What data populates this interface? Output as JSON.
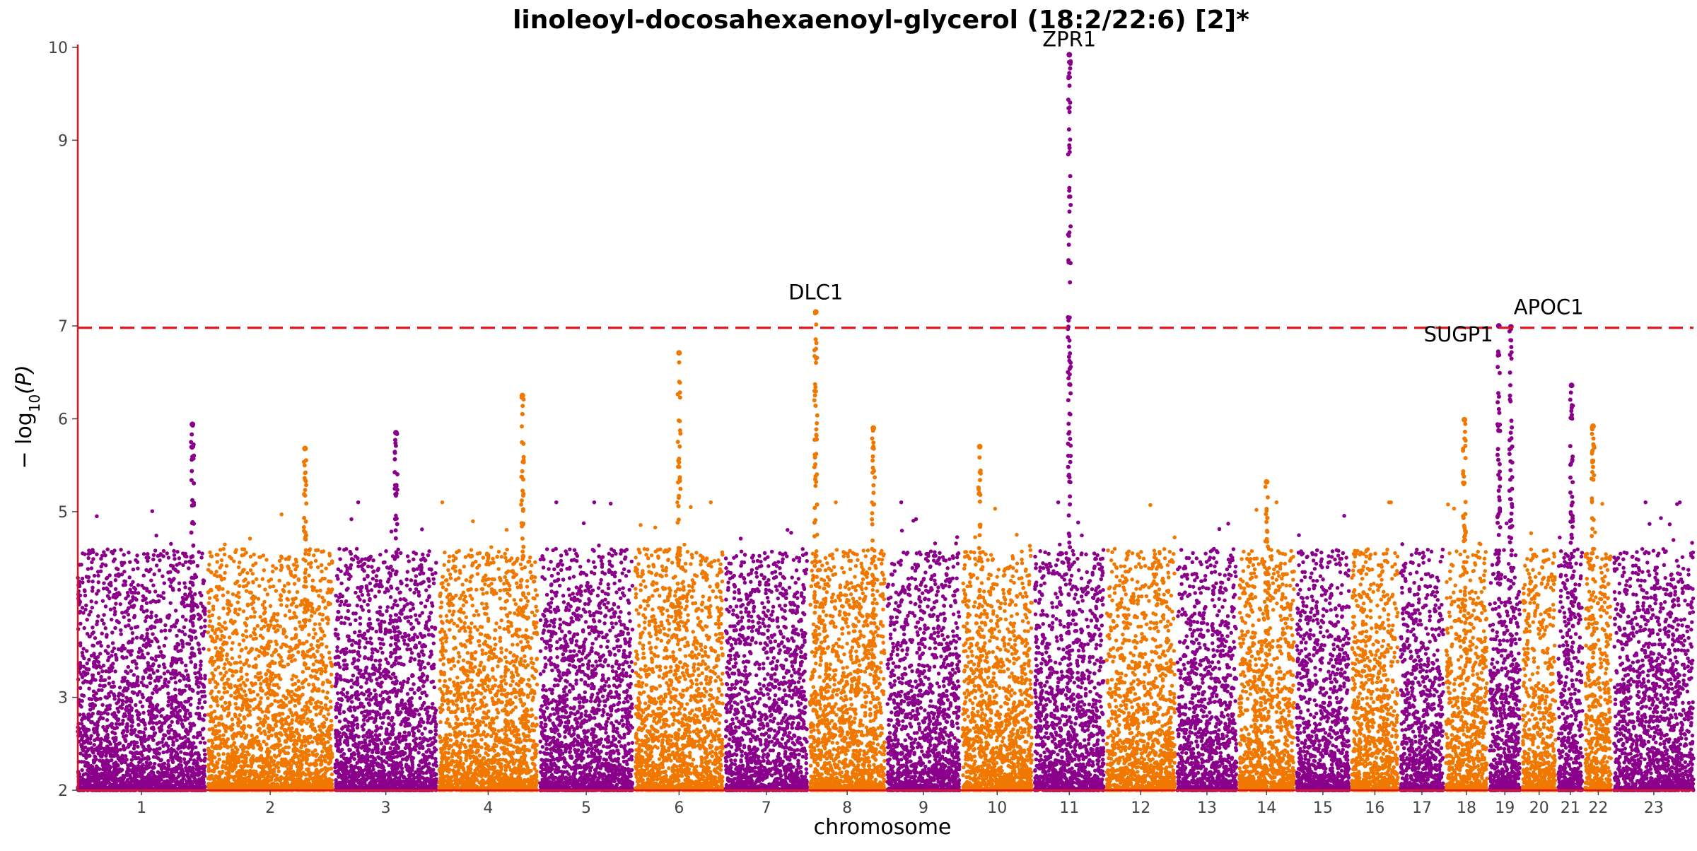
{
  "chart_data": {
    "type": "scatter",
    "subtype": "manhattan",
    "title": "linoleoyl-docosahexaenoyl-glycerol (18:2/22:6) [2]*",
    "xlabel": "chromosome",
    "ylabel": "−log10(P)",
    "ylabel_base": "− log",
    "ylabel_sub": "10",
    "ylabel_arg": "(P)",
    "ylim": [
      2,
      10
    ],
    "yticks": [
      "2",
      "3",
      "5",
      "6",
      "7",
      "9",
      "10"
    ],
    "threshold": 6.98,
    "grid": false,
    "legend": "none",
    "colors": {
      "odd": "#8b008b",
      "even": "#f07800",
      "threshold": "#e0141e",
      "axis": "#e0141e"
    },
    "chromosomes": [
      "1",
      "2",
      "3",
      "4",
      "5",
      "6",
      "7",
      "8",
      "9",
      "10",
      "11",
      "12",
      "13",
      "14",
      "15",
      "16",
      "17",
      "18",
      "19",
      "20",
      "21",
      "22",
      "23"
    ],
    "chrom_length": [
      249,
      243,
      198,
      191,
      181,
      171,
      159,
      146,
      141,
      136,
      135,
      133,
      115,
      107,
      102,
      90,
      83,
      80,
      59,
      64,
      47,
      51,
      155
    ],
    "annotations": [
      {
        "label": "ZPR1",
        "chrom": "11",
        "pos": 0.5,
        "y": 9.92
      },
      {
        "label": "DLC1",
        "chrom": "8",
        "pos": 0.08,
        "y": 7.15
      },
      {
        "label": "APOC1",
        "chrom": "19",
        "pos": 0.7,
        "y": 6.99
      },
      {
        "label": "SUGP1",
        "chrom": "19",
        "pos": 0.3,
        "y": 7.0
      }
    ],
    "peaks": [
      {
        "chrom": "1",
        "pos": 0.9,
        "y": 5.94
      },
      {
        "chrom": "3",
        "pos": 0.6,
        "y": 5.85
      },
      {
        "chrom": "2",
        "pos": 0.78,
        "y": 5.68
      },
      {
        "chrom": "4",
        "pos": 0.85,
        "y": 6.25
      },
      {
        "chrom": "6",
        "pos": 0.5,
        "y": 6.71
      },
      {
        "chrom": "8",
        "pos": 0.08,
        "y": 7.15
      },
      {
        "chrom": "8",
        "pos": 0.85,
        "y": 5.9
      },
      {
        "chrom": "10",
        "pos": 0.25,
        "y": 5.7
      },
      {
        "chrom": "11",
        "pos": 0.5,
        "y": 9.92
      },
      {
        "chrom": "14",
        "pos": 0.5,
        "y": 5.32
      },
      {
        "chrom": "18",
        "pos": 0.45,
        "y": 5.99
      },
      {
        "chrom": "19",
        "pos": 0.3,
        "y": 7.0
      },
      {
        "chrom": "19",
        "pos": 0.7,
        "y": 6.99
      },
      {
        "chrom": "21",
        "pos": 0.55,
        "y": 6.36
      },
      {
        "chrom": "22",
        "pos": 0.3,
        "y": 5.92
      }
    ]
  }
}
